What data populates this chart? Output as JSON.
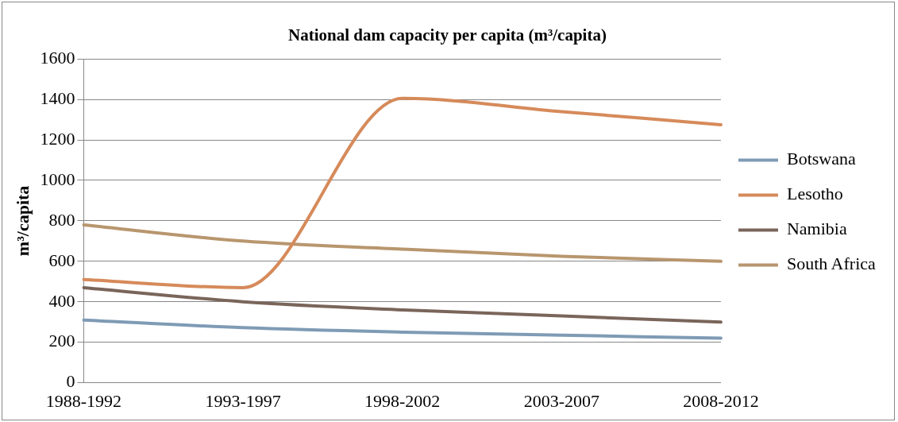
{
  "chart_data": {
    "type": "line",
    "title": "National dam capacity per capita (m³/capita)",
    "ylabel": "m³/capita",
    "categories": [
      "1988-1992",
      "1993-1997",
      "1998-2002",
      "2003-2007",
      "2008-2012"
    ],
    "series": [
      {
        "name": "Botswana",
        "color": "#7f9bb5",
        "values": [
          310,
          272,
          250,
          235,
          220
        ]
      },
      {
        "name": "Lesotho",
        "color": "#d68a5a",
        "values": [
          510,
          470,
          1405,
          1340,
          1275
        ]
      },
      {
        "name": "Namibia",
        "color": "#7a655b",
        "values": [
          470,
          400,
          360,
          330,
          300
        ]
      },
      {
        "name": "South Africa",
        "color": "#b8966e",
        "values": [
          780,
          700,
          660,
          625,
          600
        ]
      }
    ],
    "ylim": [
      0,
      1600
    ],
    "yticks": [
      0,
      200,
      400,
      600,
      800,
      1000,
      1200,
      1400,
      1600
    ],
    "grid": "y",
    "legend": "right"
  }
}
